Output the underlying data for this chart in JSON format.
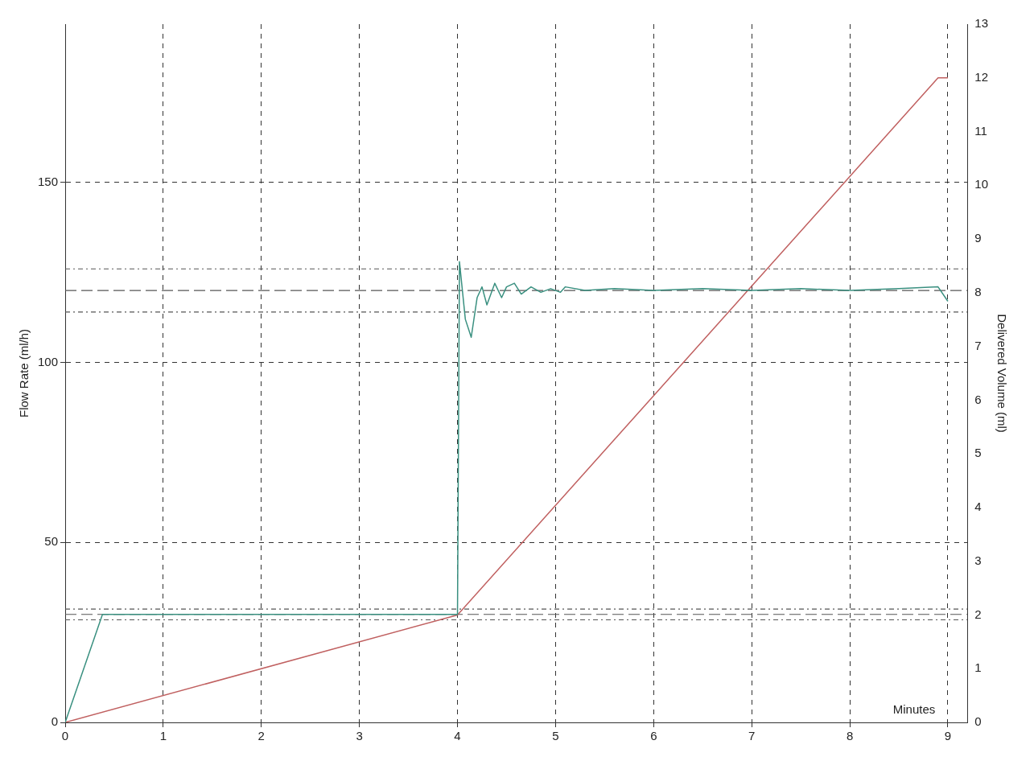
{
  "chart_data": {
    "type": "line",
    "xlabel": "Minutes",
    "ylabel": "Flow Rate (ml/h)",
    "y2label": "Delivered Volume (ml)",
    "xlim": [
      0,
      9.2
    ],
    "xticks": [
      0,
      1,
      2,
      3,
      4,
      5,
      6,
      7,
      8,
      9
    ],
    "ylim": [
      0,
      194
    ],
    "yticks": [
      0,
      50,
      100,
      150
    ],
    "y2lim": [
      0,
      13
    ],
    "y2ticks": [
      0,
      1,
      2,
      3,
      4,
      5,
      6,
      7,
      8,
      9,
      10,
      11,
      12,
      13
    ],
    "grid": true,
    "legend": false,
    "marker": "none",
    "series": [
      {
        "color": "#3a9080",
        "x": [
          0,
          0.38,
          4.0,
          4.02,
          4.08,
          4.14,
          4.2,
          4.25,
          4.3,
          4.38,
          4.45,
          4.5,
          4.58,
          4.65,
          4.75,
          4.85,
          4.95,
          5.05,
          5.1,
          5.3,
          5.6,
          6,
          6.5,
          7,
          7.5,
          8,
          8.5,
          8.9,
          9.0
        ],
        "values": [
          0,
          30,
          30,
          128,
          112,
          107,
          118,
          121,
          116,
          122,
          118,
          121,
          122,
          119,
          121,
          119.5,
          120.5,
          119.5,
          121,
          120,
          120.5,
          120,
          120.5,
          120,
          120.5,
          120,
          120.5,
          121,
          117
        ]
      },
      {
        "color": "#c06060",
        "axis": "y2",
        "x": [
          0,
          4,
          8.9,
          9
        ],
        "values": [
          0,
          2,
          12,
          12
        ]
      }
    ],
    "ref_lines": [
      {
        "axis": "y",
        "value": 120,
        "line_style": "dashed",
        "color": "#555555"
      },
      {
        "axis": "y",
        "value": 126,
        "line_style": "dotted",
        "color": "#555555"
      },
      {
        "axis": "y",
        "value": 114,
        "line_style": "dotted",
        "color": "#555555"
      },
      {
        "axis": "y",
        "value": 30,
        "line_style": "dashed",
        "color": "#555555"
      },
      {
        "axis": "y",
        "value": 31.5,
        "line_style": "dotted",
        "color": "#555555"
      },
      {
        "axis": "y",
        "value": 28.5,
        "line_style": "dotted",
        "color": "#555555"
      }
    ]
  }
}
